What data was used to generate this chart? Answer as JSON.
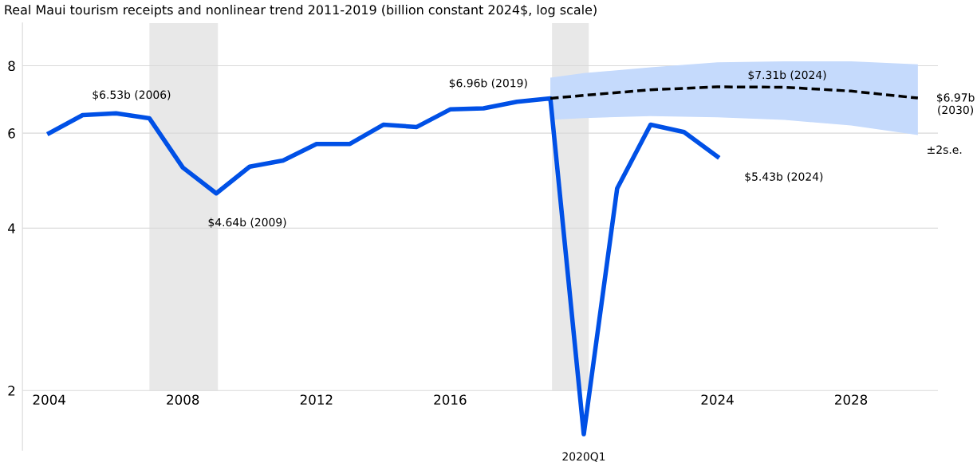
{
  "chart_data": {
    "type": "line",
    "title": "Real Maui tourism receipts and nonlinear trend 2011-2019 (billion constant 2024$, log scale)",
    "series": [
      {
        "color": "#0050e6",
        "line_style": "solid",
        "x": [
          2004,
          2005,
          2006,
          2007,
          2008,
          2009,
          2010,
          2011,
          2012,
          2013,
          2014,
          2015,
          2016,
          2017,
          2018,
          2019,
          2020,
          2021,
          2022,
          2023,
          2024
        ],
        "values": [
          6.0,
          6.48,
          6.53,
          6.39,
          5.18,
          4.64,
          5.2,
          5.34,
          5.73,
          5.73,
          6.22,
          6.16,
          6.64,
          6.67,
          6.86,
          6.96,
          1.66,
          4.74,
          6.22,
          6.03,
          5.43
        ]
      },
      {
        "color": "#000000",
        "line_style": "dashed",
        "x": [
          2019,
          2020,
          2022,
          2024,
          2026,
          2028,
          2030
        ],
        "values": [
          6.96,
          7.05,
          7.22,
          7.31,
          7.3,
          7.18,
          6.97
        ],
        "lower": [
          6.35,
          6.4,
          6.45,
          6.42,
          6.35,
          6.2,
          5.95
        ],
        "upper": [
          7.6,
          7.75,
          7.95,
          8.12,
          8.15,
          8.15,
          8.05
        ]
      }
    ],
    "bands": [
      {
        "axis": "x",
        "from": 2007,
        "to": 2009.05,
        "color": "#e8e8e8"
      },
      {
        "axis": "x",
        "from": 2019.05,
        "to": 2020.15,
        "color": "#e8e8e8"
      }
    ],
    "annotations": [
      {
        "text": "$6.53b (2006)",
        "x": 2006,
        "y": 6.53
      },
      {
        "text": "$4.64b (2009)",
        "x": 2009,
        "y": 4.64
      },
      {
        "text": "$6.96b (2019)",
        "x": 2019,
        "y": 6.96
      },
      {
        "text": "$5.43b (2024)",
        "x": 2024,
        "y": 5.43
      },
      {
        "text": "$7.31b (2024)",
        "x": 2024,
        "y": 7.31
      },
      {
        "text": "$6.97b\n(2030)",
        "x": 2030,
        "y": 6.97
      },
      {
        "text": "2020Q1",
        "x": 2020,
        "y": 1.66
      },
      {
        "text": "±2s.e.",
        "x": 2030,
        "y": 5.95
      }
    ],
    "log": "y",
    "xlim": [
      2003.2,
      2030.6
    ],
    "ylim": [
      1.55,
      9.6
    ],
    "xticks": [
      2004,
      2008,
      2012,
      2016,
      2024,
      2028
    ],
    "yticks": [
      2,
      4,
      6,
      8
    ],
    "grid": "y",
    "legend": false,
    "marker": "none"
  }
}
